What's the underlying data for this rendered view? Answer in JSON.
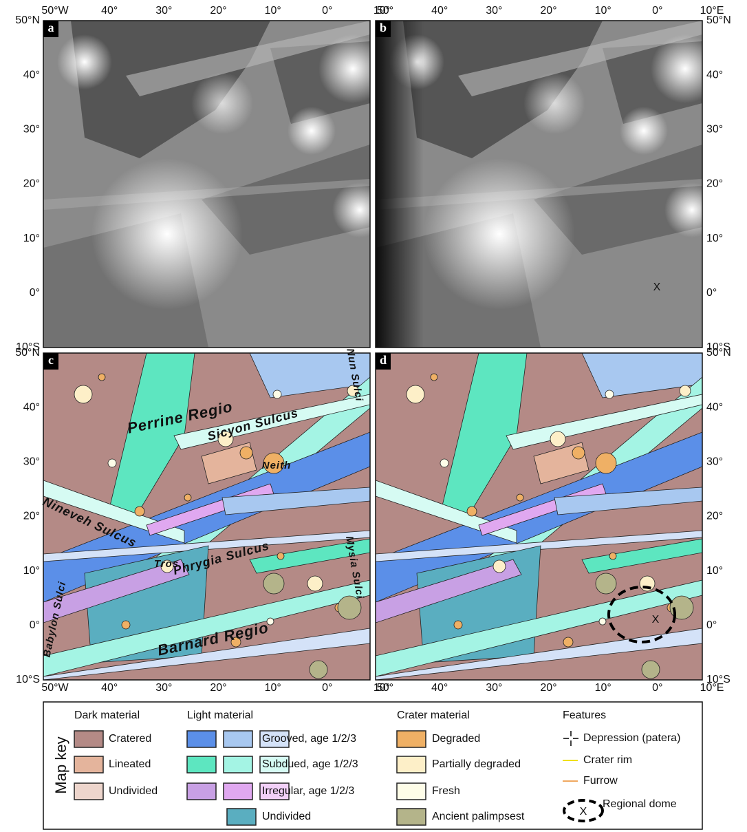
{
  "panels": [
    {
      "letter": "a"
    },
    {
      "letter": "b"
    },
    {
      "letter": "c"
    },
    {
      "letter": "d"
    }
  ],
  "axes": {
    "top_a": [
      "50°W",
      "40°",
      "30°",
      "20°",
      "10°",
      "0°",
      "10°"
    ],
    "top_b": [
      "50°",
      "40°",
      "30°",
      "20°",
      "10°",
      "0°",
      "10°E"
    ],
    "bottom_c": [
      "50°W",
      "40°",
      "30°",
      "20°",
      "10°",
      "0°",
      "10°"
    ],
    "bottom_d": [
      "50°",
      "40°",
      "30°",
      "20°",
      "10°",
      "0°",
      "10°E"
    ],
    "left_a": [
      "50°N",
      "40°",
      "30°",
      "20°",
      "10°",
      "0°",
      "10°S"
    ],
    "left_c": [
      "50°N",
      "40°",
      "30°",
      "20°",
      "10°",
      "0°",
      "10°S"
    ],
    "right_b": [
      "50°N",
      "40°",
      "30°",
      "20°",
      "10°",
      "0°",
      "10°S"
    ],
    "right_d": [
      "50°N",
      "40°",
      "30°",
      "20°",
      "10°",
      "0°",
      "10°S"
    ]
  },
  "dome_marker_b": "X",
  "dome_marker_d": "X",
  "map_labels": [
    "Perrine Regio",
    "Sicyon Sulcus",
    "Neith",
    "Nineveh Sulcus",
    "Tros",
    "Phrygia Sulcus",
    "Barnard Regio",
    "Babylon Sulci",
    "Nun Sulci",
    "Mysia Sulci"
  ],
  "legend": {
    "title": "Map key",
    "dark": {
      "header": "Dark material",
      "items": [
        "Cratered",
        "Lineated",
        "Undivided"
      ]
    },
    "light": {
      "header": "Light material",
      "items": [
        "Grooved, age 1/2/3",
        "Subdued, age 1/2/3",
        "Irregular, age 1/2/3",
        "Undivided"
      ]
    },
    "crater": {
      "header": "Crater material",
      "items": [
        "Degraded",
        "Partially degraded",
        "Fresh",
        "Ancient palimpsest"
      ]
    },
    "features": {
      "header": "Features",
      "items": [
        "Depression (patera)",
        "Crater rim",
        "Furrow",
        "Regional dome"
      ],
      "dome_marker": "X"
    }
  }
}
